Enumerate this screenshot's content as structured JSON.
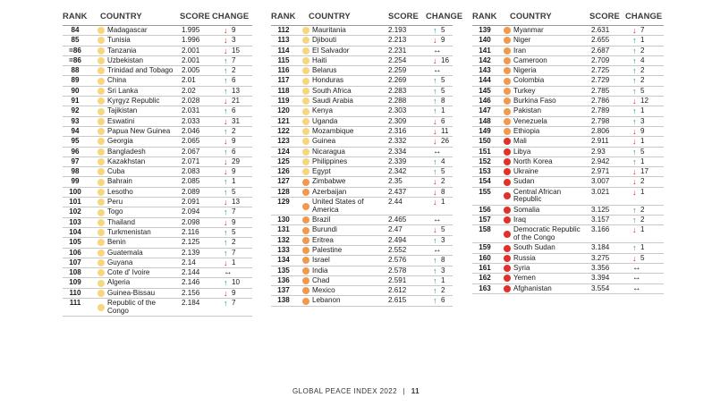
{
  "headers": {
    "rank": "RANK",
    "country": "COUNTRY",
    "score": "SCORE",
    "change": "CHANGE"
  },
  "colors": {
    "very_high": "#f7d57d",
    "high": "#f6ba7c",
    "medium": "#f5a35c",
    "low": "#f29a4e",
    "very_low": "#e6342a",
    "up": "#1f8f76",
    "down": "#e02020"
  },
  "columns": [
    [
      {
        "rank": "84",
        "country": "Madagascar",
        "score": "1.995",
        "dir": "down",
        "change": "9",
        "dot": "#f7d67e"
      },
      {
        "rank": "85",
        "country": "Tunisia",
        "score": "1.996",
        "dir": "down",
        "change": "3",
        "dot": "#f7d67e"
      },
      {
        "rank": "=86",
        "country": "Tanzania",
        "score": "2.001",
        "dir": "down",
        "change": "15",
        "dot": "#f7d67e"
      },
      {
        "rank": "=86",
        "country": "Uzbekistan",
        "score": "2.001",
        "dir": "up",
        "change": "7",
        "dot": "#f7d67e"
      },
      {
        "rank": "88",
        "country": "Trinidad and Tobago",
        "score": "2.005",
        "dir": "up",
        "change": "2",
        "dot": "#f7d67e"
      },
      {
        "rank": "89",
        "country": "China",
        "score": "2.01",
        "dir": "up",
        "change": "6",
        "dot": "#f7d67e"
      },
      {
        "rank": "90",
        "country": "Sri Lanka",
        "score": "2.02",
        "dir": "up",
        "change": "13",
        "dot": "#f7d67e"
      },
      {
        "rank": "91",
        "country": "Kyrgyz Republic",
        "score": "2.028",
        "dir": "down",
        "change": "21",
        "dot": "#f7d67e"
      },
      {
        "rank": "92",
        "country": "Tajikistan",
        "score": "2.031",
        "dir": "up",
        "change": "6",
        "dot": "#f7d67e"
      },
      {
        "rank": "93",
        "country": "Eswatini",
        "score": "2.033",
        "dir": "down",
        "change": "31",
        "dot": "#f7d67e"
      },
      {
        "rank": "94",
        "country": "Papua New Guinea",
        "score": "2.046",
        "dir": "up",
        "change": "2",
        "dot": "#f7d67e"
      },
      {
        "rank": "95",
        "country": "Georgia",
        "score": "2.065",
        "dir": "down",
        "change": "9",
        "dot": "#f7d67e"
      },
      {
        "rank": "96",
        "country": "Bangladesh",
        "score": "2.067",
        "dir": "up",
        "change": "6",
        "dot": "#f7d67e"
      },
      {
        "rank": "97",
        "country": "Kazakhstan",
        "score": "2.071",
        "dir": "down",
        "change": "29",
        "dot": "#f7d67e"
      },
      {
        "rank": "98",
        "country": "Cuba",
        "score": "2.083",
        "dir": "down",
        "change": "9",
        "dot": "#f7d67e"
      },
      {
        "rank": "99",
        "country": "Bahrain",
        "score": "2.085",
        "dir": "up",
        "change": "1",
        "dot": "#f7d67e"
      },
      {
        "rank": "100",
        "country": "Lesotho",
        "score": "2.089",
        "dir": "up",
        "change": "5",
        "dot": "#f7d67e"
      },
      {
        "rank": "101",
        "country": "Peru",
        "score": "2.091",
        "dir": "down",
        "change": "13",
        "dot": "#f7d67e"
      },
      {
        "rank": "102",
        "country": "Togo",
        "score": "2.094",
        "dir": "up",
        "change": "7",
        "dot": "#f7d67e"
      },
      {
        "rank": "103",
        "country": "Thailand",
        "score": "2.098",
        "dir": "down",
        "change": "9",
        "dot": "#f7d67e"
      },
      {
        "rank": "104",
        "country": "Turkmenistan",
        "score": "2.116",
        "dir": "up",
        "change": "5",
        "dot": "#f7d67e"
      },
      {
        "rank": "105",
        "country": "Benin",
        "score": "2.125",
        "dir": "up",
        "change": "2",
        "dot": "#f7d67e"
      },
      {
        "rank": "106",
        "country": "Guatemala",
        "score": "2.139",
        "dir": "up",
        "change": "7",
        "dot": "#f7d67e"
      },
      {
        "rank": "107",
        "country": "Guyana",
        "score": "2.14",
        "dir": "down",
        "change": "1",
        "dot": "#f7d67e"
      },
      {
        "rank": "108",
        "country": "Cote d' Ivoire",
        "score": "2.144",
        "dir": "same",
        "change": "",
        "dot": "#f7d67e"
      },
      {
        "rank": "109",
        "country": "Algeria",
        "score": "2.146",
        "dir": "up",
        "change": "10",
        "dot": "#f7d67e"
      },
      {
        "rank": "110",
        "country": "Guinea-Bissau",
        "score": "2.156",
        "dir": "down",
        "change": "9",
        "dot": "#f7d67e"
      },
      {
        "rank": "111",
        "country": "Republic of the Congo",
        "score": "2.184",
        "dir": "up",
        "change": "7",
        "dot": "#f7d67e",
        "tall": true
      }
    ],
    [
      {
        "rank": "112",
        "country": "Mauritania",
        "score": "2.193",
        "dir": "up",
        "change": "5",
        "dot": "#f7d67e"
      },
      {
        "rank": "113",
        "country": "Djibouti",
        "score": "2.213",
        "dir": "down",
        "change": "9",
        "dot": "#f7d67e"
      },
      {
        "rank": "114",
        "country": "El Salvador",
        "score": "2.231",
        "dir": "same",
        "change": "",
        "dot": "#f7d67e"
      },
      {
        "rank": "115",
        "country": "Haiti",
        "score": "2.254",
        "dir": "down",
        "change": "16",
        "dot": "#f7d67e"
      },
      {
        "rank": "116",
        "country": "Belarus",
        "score": "2.259",
        "dir": "same",
        "change": "",
        "dot": "#f7d67e"
      },
      {
        "rank": "117",
        "country": "Honduras",
        "score": "2.269",
        "dir": "up",
        "change": "5",
        "dot": "#f7d67e"
      },
      {
        "rank": "118",
        "country": "South Africa",
        "score": "2.283",
        "dir": "up",
        "change": "5",
        "dot": "#f7d67e"
      },
      {
        "rank": "119",
        "country": "Saudi Arabia",
        "score": "2.288",
        "dir": "up",
        "change": "8",
        "dot": "#f7d67e"
      },
      {
        "rank": "120",
        "country": "Kenya",
        "score": "2.303",
        "dir": "up",
        "change": "1",
        "dot": "#f7d67e"
      },
      {
        "rank": "121",
        "country": "Uganda",
        "score": "2.309",
        "dir": "down",
        "change": "6",
        "dot": "#f7d67e"
      },
      {
        "rank": "122",
        "country": "Mozambique",
        "score": "2.316",
        "dir": "down",
        "change": "11",
        "dot": "#f7d67e"
      },
      {
        "rank": "123",
        "country": "Guinea",
        "score": "2.332",
        "dir": "down",
        "change": "26",
        "dot": "#f7d67e"
      },
      {
        "rank": "124",
        "country": "Nicaragua",
        "score": "2.334",
        "dir": "same",
        "change": "",
        "dot": "#f7d67e"
      },
      {
        "rank": "125",
        "country": "Philippines",
        "score": "2.339",
        "dir": "up",
        "change": "4",
        "dot": "#f7d67e"
      },
      {
        "rank": "126",
        "country": "Egypt",
        "score": "2.342",
        "dir": "up",
        "change": "5",
        "dot": "#f7d67e"
      },
      {
        "rank": "127",
        "country": "Zimbabwe",
        "score": "2.35",
        "dir": "down",
        "change": "2",
        "dot": "#f19a4e"
      },
      {
        "rank": "128",
        "country": "Azerbaijan",
        "score": "2.437",
        "dir": "down",
        "change": "8",
        "dot": "#f19a4e"
      },
      {
        "rank": "129",
        "country": "United States of America",
        "score": "2.44",
        "dir": "down",
        "change": "1",
        "dot": "#f19a4e",
        "tall": true
      },
      {
        "rank": "130",
        "country": "Brazil",
        "score": "2.465",
        "dir": "same",
        "change": "",
        "dot": "#f19a4e"
      },
      {
        "rank": "131",
        "country": "Burundi",
        "score": "2.47",
        "dir": "down",
        "change": "5",
        "dot": "#f19a4e"
      },
      {
        "rank": "132",
        "country": "Eritrea",
        "score": "2.494",
        "dir": "up",
        "change": "3",
        "dot": "#f19a4e"
      },
      {
        "rank": "133",
        "country": "Palestine",
        "score": "2.552",
        "dir": "same",
        "change": "",
        "dot": "#f19a4e"
      },
      {
        "rank": "134",
        "country": "Israel",
        "score": "2.576",
        "dir": "up",
        "change": "8",
        "dot": "#f19a4e"
      },
      {
        "rank": "135",
        "country": "India",
        "score": "2.578",
        "dir": "up",
        "change": "3",
        "dot": "#f19a4e"
      },
      {
        "rank": "136",
        "country": "Chad",
        "score": "2.591",
        "dir": "up",
        "change": "1",
        "dot": "#f19a4e"
      },
      {
        "rank": "137",
        "country": "Mexico",
        "score": "2.612",
        "dir": "up",
        "change": "2",
        "dot": "#f19a4e"
      },
      {
        "rank": "138",
        "country": "Lebanon",
        "score": "2.615",
        "dir": "up",
        "change": "6",
        "dot": "#f19a4e"
      }
    ],
    [
      {
        "rank": "139",
        "country": "Myanmar",
        "score": "2.631",
        "dir": "down",
        "change": "7",
        "dot": "#f19a4e"
      },
      {
        "rank": "140",
        "country": "Niger",
        "score": "2.655",
        "dir": "up",
        "change": "1",
        "dot": "#f19a4e"
      },
      {
        "rank": "141",
        "country": "Iran",
        "score": "2.687",
        "dir": "up",
        "change": "2",
        "dot": "#f19a4e"
      },
      {
        "rank": "142",
        "country": "Cameroon",
        "score": "2.709",
        "dir": "up",
        "change": "4",
        "dot": "#f19a4e"
      },
      {
        "rank": "143",
        "country": "Nigeria",
        "score": "2.725",
        "dir": "up",
        "change": "2",
        "dot": "#f19a4e"
      },
      {
        "rank": "144",
        "country": "Colombia",
        "score": "2.729",
        "dir": "up",
        "change": "2",
        "dot": "#f19a4e"
      },
      {
        "rank": "145",
        "country": "Turkey",
        "score": "2.785",
        "dir": "up",
        "change": "5",
        "dot": "#f19a4e"
      },
      {
        "rank": "146",
        "country": "Burkina Faso",
        "score": "2.786",
        "dir": "down",
        "change": "12",
        "dot": "#f19a4e"
      },
      {
        "rank": "147",
        "country": "Pakistan",
        "score": "2.789",
        "dir": "up",
        "change": "1",
        "dot": "#f19a4e"
      },
      {
        "rank": "148",
        "country": "Venezuela",
        "score": "2.798",
        "dir": "up",
        "change": "3",
        "dot": "#f19a4e"
      },
      {
        "rank": "149",
        "country": "Ethiopia",
        "score": "2.806",
        "dir": "down",
        "change": "9",
        "dot": "#f19a4e"
      },
      {
        "rank": "150",
        "country": "Mali",
        "score": "2.911",
        "dir": "down",
        "change": "1",
        "dot": "#e2302a"
      },
      {
        "rank": "151",
        "country": "Libya",
        "score": "2.93",
        "dir": "up",
        "change": "5",
        "dot": "#e2302a"
      },
      {
        "rank": "152",
        "country": "North Korea",
        "score": "2.942",
        "dir": "up",
        "change": "1",
        "dot": "#e2302a"
      },
      {
        "rank": "153",
        "country": "Ukraine",
        "score": "2.971",
        "dir": "down",
        "change": "17",
        "dot": "#e2302a"
      },
      {
        "rank": "154",
        "country": "Sudan",
        "score": "3.007",
        "dir": "down",
        "change": "2",
        "dot": "#e2302a"
      },
      {
        "rank": "155",
        "country": "Central African Republic",
        "score": "3.021",
        "dir": "down",
        "change": "1",
        "dot": "#e2302a",
        "tall": true
      },
      {
        "rank": "156",
        "country": "Somalia",
        "score": "3.125",
        "dir": "up",
        "change": "2",
        "dot": "#e2302a"
      },
      {
        "rank": "157",
        "country": "Iraq",
        "score": "3.157",
        "dir": "up",
        "change": "2",
        "dot": "#e2302a"
      },
      {
        "rank": "158",
        "country": "Democratic Republic of the Congo",
        "score": "3.166",
        "dir": "down",
        "change": "1",
        "dot": "#e2302a",
        "tall": true
      },
      {
        "rank": "159",
        "country": "South Sudan",
        "score": "3.184",
        "dir": "up",
        "change": "1",
        "dot": "#e2302a"
      },
      {
        "rank": "160",
        "country": "Russia",
        "score": "3.275",
        "dir": "down",
        "change": "5",
        "dot": "#e2302a"
      },
      {
        "rank": "161",
        "country": "Syria",
        "score": "3.356",
        "dir": "same",
        "change": "",
        "dot": "#e2302a"
      },
      {
        "rank": "162",
        "country": "Yemen",
        "score": "3.394",
        "dir": "same",
        "change": "",
        "dot": "#e2302a"
      },
      {
        "rank": "163",
        "country": "Afghanistan",
        "score": "3.554",
        "dir": "same",
        "change": "",
        "dot": "#e2302a"
      }
    ]
  ],
  "footer": {
    "title": "GLOBAL PEACE INDEX 2022",
    "separator": "|",
    "page": "11"
  }
}
